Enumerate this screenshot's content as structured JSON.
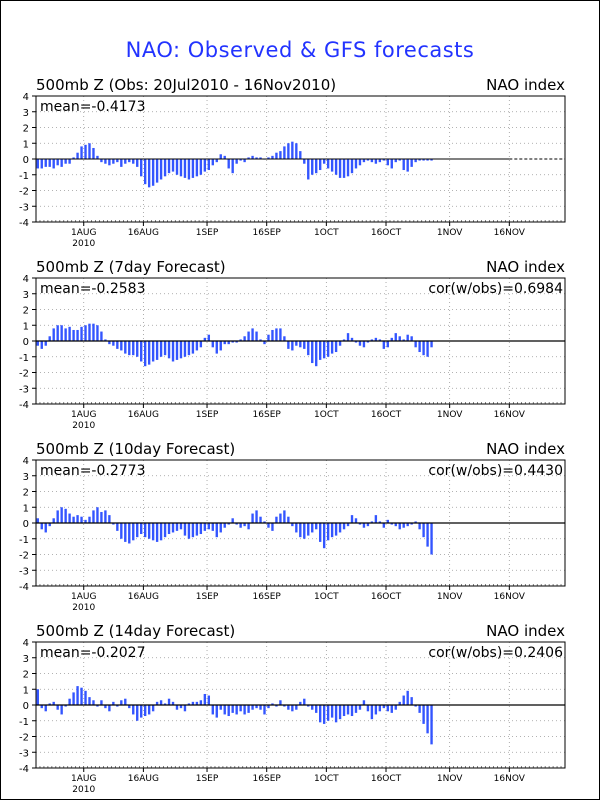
{
  "page_title": "NAO: Observed & GFS forecasts",
  "colors": {
    "bar": "#3355ff",
    "axis": "#000000",
    "grid": "#999999",
    "title": "#2233ff"
  },
  "x_tick_labels": [
    "1AUG",
    "16AUG",
    "1SEP",
    "16SEP",
    "1OCT",
    "16OCT",
    "1NOV",
    "16NOV"
  ],
  "x_year_label": "2010",
  "y_tick_labels": [
    "4",
    "3",
    "2",
    "1",
    "0",
    "-1",
    "-2",
    "-3",
    "-4"
  ],
  "chart_data": [
    {
      "type": "bar",
      "title": "500mb  Z (Obs: 20Jul2010 - 16Nov2010)",
      "right_label": "NAO index",
      "mean_text": "mean=-0.4173",
      "cor_text": "",
      "x_start": "20Jul2010",
      "x_end": "30Nov2010",
      "ylim": [
        -4,
        4
      ],
      "grid": true,
      "dashed_zero_after": "16Nov2010",
      "values": [
        -0.6,
        -0.6,
        -0.5,
        -0.5,
        -0.6,
        -0.4,
        -0.5,
        -0.3,
        -0.3,
        0.1,
        0.4,
        0.8,
        0.9,
        1.0,
        0.7,
        0.2,
        -0.2,
        -0.3,
        -0.4,
        -0.3,
        -0.2,
        -0.5,
        -0.3,
        -0.2,
        -0.3,
        -0.5,
        -1.1,
        -1.6,
        -1.8,
        -1.7,
        -1.5,
        -1.3,
        -1.1,
        -0.9,
        -0.8,
        -1.0,
        -1.1,
        -1.2,
        -1.3,
        -1.2,
        -1.1,
        -1.0,
        -0.8,
        -0.7,
        -0.4,
        -0.2,
        0.3,
        0.2,
        -0.6,
        -0.9,
        -0.3,
        -0.1,
        -0.2,
        0.1,
        0.2,
        0.1,
        0.1,
        0.0,
        0.1,
        0.2,
        0.4,
        0.5,
        0.8,
        1.0,
        1.1,
        1.0,
        0.5,
        -0.3,
        -1.3,
        -1.0,
        -0.9,
        -0.7,
        -0.3,
        -0.6,
        -0.8,
        -1.0,
        -1.2,
        -1.2,
        -1.1,
        -0.9,
        -0.6,
        -0.4,
        -0.2,
        -0.1,
        -0.2,
        -0.3,
        -0.2,
        -0.1,
        -0.4,
        -0.6,
        -0.2,
        -0.1,
        -0.7,
        -0.8,
        -0.5,
        -0.2,
        -0.1,
        -0.1,
        -0.1,
        -0.1
      ]
    },
    {
      "type": "bar",
      "title": "500mb  Z (7day Forecast)",
      "right_label": "NAO index",
      "mean_text": "mean=-0.2583",
      "cor_text": "cor(w/obs)=0.6984",
      "x_start": "20Jul2010",
      "x_end": "30Nov2010",
      "ylim": [
        -4,
        4
      ],
      "grid": true,
      "values": [
        -0.3,
        -0.5,
        -0.3,
        0.3,
        0.8,
        1.0,
        1.0,
        0.8,
        0.9,
        0.7,
        0.7,
        0.9,
        1.0,
        1.1,
        1.1,
        1.0,
        0.6,
        0.1,
        -0.2,
        -0.3,
        -0.5,
        -0.6,
        -0.8,
        -0.9,
        -0.9,
        -1.0,
        -1.3,
        -1.6,
        -1.5,
        -1.3,
        -1.2,
        -1.0,
        -0.9,
        -1.1,
        -1.3,
        -1.2,
        -1.1,
        -1.0,
        -0.9,
        -0.8,
        -0.6,
        -0.4,
        0.2,
        0.4,
        -0.4,
        -0.8,
        -0.6,
        -0.2,
        -0.2,
        -0.1,
        -0.1,
        0.1,
        0.3,
        0.6,
        0.8,
        0.6,
        0.1,
        -0.2,
        0.4,
        0.7,
        0.8,
        0.8,
        0.3,
        -0.5,
        -0.6,
        -0.3,
        -0.4,
        -0.5,
        -0.9,
        -1.4,
        -1.6,
        -1.2,
        -1.1,
        -1.0,
        -0.8,
        -0.7,
        -0.3,
        0.1,
        0.5,
        0.2,
        -0.1,
        -0.3,
        -0.4,
        -0.1,
        0.1,
        0.2,
        0.1,
        -0.5,
        -0.4,
        0.2,
        0.5,
        0.3,
        0.1,
        0.4,
        0.3,
        -0.4,
        -0.7,
        -0.9,
        -1.0,
        -0.4
      ]
    },
    {
      "type": "bar",
      "title": "500mb  Z (10day Forecast)",
      "right_label": "NAO index",
      "mean_text": "mean=-0.2773",
      "cor_text": "cor(w/obs)=0.4430",
      "x_start": "20Jul2010",
      "x_end": "30Nov2010",
      "ylim": [
        -4,
        4
      ],
      "grid": true,
      "values": [
        0.3,
        -0.4,
        -0.6,
        -0.2,
        0.3,
        0.8,
        1.0,
        0.9,
        0.6,
        0.4,
        0.5,
        0.4,
        0.2,
        0.4,
        0.8,
        1.0,
        0.7,
        0.8,
        0.5,
        -0.1,
        -0.5,
        -1.0,
        -1.2,
        -1.3,
        -1.1,
        -0.9,
        -0.7,
        -0.9,
        -1.0,
        -1.1,
        -1.2,
        -1.1,
        -0.9,
        -0.7,
        -0.6,
        -0.5,
        -0.4,
        -0.8,
        -1.0,
        -0.9,
        -0.8,
        -0.7,
        -0.5,
        -0.4,
        -0.5,
        -0.9,
        -0.6,
        -0.3,
        -0.1,
        0.3,
        -0.1,
        -0.3,
        -0.2,
        -0.4,
        0.6,
        0.8,
        0.4,
        0.1,
        -0.3,
        -0.5,
        0.4,
        0.6,
        0.8,
        0.4,
        -0.2,
        -0.6,
        -0.9,
        -1.0,
        -0.8,
        -0.6,
        -0.4,
        -1.2,
        -1.6,
        -1.1,
        -0.9,
        -0.8,
        -0.6,
        -0.4,
        -0.2,
        0.5,
        0.3,
        -0.1,
        -0.3,
        -0.2,
        0.1,
        0.5,
        0.1,
        -0.3,
        0.2,
        -0.1,
        -0.2,
        -0.4,
        -0.3,
        -0.2,
        -0.1,
        0.1,
        -0.4,
        -0.9,
        -1.5,
        -2.0
      ]
    },
    {
      "type": "bar",
      "title": "500mb  Z (14day Forecast)",
      "right_label": "NAO index",
      "mean_text": "mean=-0.2027",
      "cor_text": "cor(w/obs)=0.2406",
      "x_start": "20Jul2010",
      "x_end": "30Nov2010",
      "ylim": [
        -4,
        4
      ],
      "grid": true,
      "values": [
        1.0,
        -0.2,
        -0.4,
        0.1,
        0.2,
        -0.3,
        -0.6,
        -0.1,
        0.4,
        0.8,
        1.2,
        1.1,
        0.9,
        0.5,
        0.3,
        -0.1,
        0.3,
        -0.2,
        -0.4,
        0.2,
        -0.1,
        0.3,
        0.4,
        -0.2,
        -0.6,
        -1.0,
        -0.8,
        -0.7,
        -0.6,
        -0.4,
        0.2,
        0.3,
        0.1,
        0.4,
        0.2,
        -0.3,
        -0.2,
        -0.4,
        0.1,
        0.2,
        0.2,
        0.3,
        0.7,
        0.6,
        -0.6,
        -0.8,
        -0.3,
        -0.6,
        -0.7,
        -0.5,
        -0.6,
        -0.4,
        -0.6,
        -0.5,
        -0.3,
        -0.2,
        -0.3,
        -0.6,
        -0.2,
        0.1,
        -0.1,
        0.3,
        -0.1,
        -0.3,
        -0.4,
        -0.3,
        0.2,
        0.4,
        -0.1,
        -0.3,
        -0.5,
        -1.1,
        -1.2,
        -1.0,
        -0.8,
        -1.1,
        -0.9,
        -0.7,
        -0.6,
        -0.7,
        -0.5,
        -0.3,
        0.3,
        -0.4,
        -0.9,
        -0.6,
        -0.4,
        -0.2,
        -0.4,
        -0.5,
        -0.3,
        0.2,
        0.6,
        0.9,
        0.5,
        -0.1,
        -0.5,
        -1.2,
        -1.8,
        -2.5
      ]
    }
  ]
}
